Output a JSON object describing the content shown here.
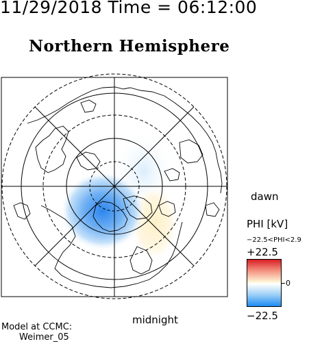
{
  "header": {
    "timestamp": "11/29/2018 Time = 06:12:00",
    "hemisphere_title": "Northern Hemisphere"
  },
  "map": {
    "dawn_label": "dawn",
    "midnight_label": "midnight"
  },
  "legend": {
    "quantity_label": "PHI [kV]",
    "range_text": "−22.5<PHI<2.9",
    "max_label": "+22.5",
    "zero_label": "0",
    "min_label": "−22.5",
    "colors": {
      "max": "#d81f26",
      "zero": "#ffffff",
      "min": "#1c8df2"
    }
  },
  "footer": {
    "model_line1": "Model at CCMC:",
    "model_line2": "Weimer_05"
  }
}
